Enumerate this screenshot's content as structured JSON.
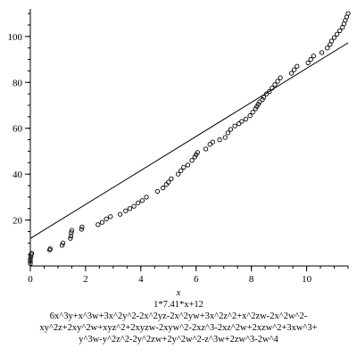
{
  "chart_data": {
    "type": "scatter",
    "xlabel": "x",
    "ylabel": "",
    "xlim": [
      0,
      11.5
    ],
    "ylim": [
      0,
      112
    ],
    "x_ticks": [
      0,
      2,
      4,
      6,
      8,
      10
    ],
    "y_ticks": [
      20,
      40,
      60,
      80,
      100
    ],
    "grid": false,
    "line": {
      "label": "1*7.41*x+12",
      "slope": 7.41,
      "intercept": 12
    },
    "points": [
      [
        0.0,
        1
      ],
      [
        0.0,
        2
      ],
      [
        0.0,
        3
      ],
      [
        0.02,
        4
      ],
      [
        0.03,
        5
      ],
      [
        0.05,
        5.5
      ],
      [
        0.7,
        7
      ],
      [
        0.72,
        7.5
      ],
      [
        1.15,
        9
      ],
      [
        1.18,
        10
      ],
      [
        1.45,
        12
      ],
      [
        1.47,
        13
      ],
      [
        1.48,
        14.5
      ],
      [
        1.5,
        15.5
      ],
      [
        1.85,
        16
      ],
      [
        1.87,
        17
      ],
      [
        2.45,
        18
      ],
      [
        2.6,
        19
      ],
      [
        2.75,
        20.5
      ],
      [
        2.9,
        21.5
      ],
      [
        3.25,
        22.5
      ],
      [
        3.45,
        24
      ],
      [
        3.6,
        25
      ],
      [
        3.75,
        26
      ],
      [
        3.9,
        27.5
      ],
      [
        4.05,
        28.5
      ],
      [
        4.2,
        30
      ],
      [
        4.6,
        32.5
      ],
      [
        4.8,
        34
      ],
      [
        4.92,
        35.5
      ],
      [
        5.0,
        36.5
      ],
      [
        5.1,
        38
      ],
      [
        5.35,
        40
      ],
      [
        5.45,
        41.5
      ],
      [
        5.55,
        43
      ],
      [
        5.7,
        44
      ],
      [
        5.85,
        46
      ],
      [
        5.95,
        47.5
      ],
      [
        6.0,
        48.5
      ],
      [
        6.05,
        49.5
      ],
      [
        6.35,
        51
      ],
      [
        6.5,
        53
      ],
      [
        6.6,
        54
      ],
      [
        6.85,
        55
      ],
      [
        7.05,
        56
      ],
      [
        7.15,
        58
      ],
      [
        7.25,
        59.5
      ],
      [
        7.4,
        61
      ],
      [
        7.55,
        62
      ],
      [
        7.65,
        63
      ],
      [
        7.8,
        64
      ],
      [
        7.95,
        65.5
      ],
      [
        8.05,
        67
      ],
      [
        8.15,
        68.5
      ],
      [
        8.2,
        69.5
      ],
      [
        8.25,
        70.5
      ],
      [
        8.3,
        71.5
      ],
      [
        8.4,
        72.5
      ],
      [
        8.45,
        73.5
      ],
      [
        8.55,
        75
      ],
      [
        8.65,
        76
      ],
      [
        8.75,
        77.5
      ],
      [
        8.85,
        79
      ],
      [
        8.95,
        80.5
      ],
      [
        9.05,
        82
      ],
      [
        9.45,
        84
      ],
      [
        9.55,
        85.5
      ],
      [
        9.65,
        87
      ],
      [
        10.05,
        88.5
      ],
      [
        10.15,
        90
      ],
      [
        10.25,
        91.5
      ],
      [
        10.55,
        93
      ],
      [
        10.75,
        95
      ],
      [
        10.85,
        96.5
      ],
      [
        10.9,
        98
      ],
      [
        11.0,
        99.5
      ],
      [
        11.1,
        101
      ],
      [
        11.2,
        102.5
      ],
      [
        11.3,
        104
      ],
      [
        11.35,
        105.5
      ],
      [
        11.4,
        107
      ],
      [
        11.45,
        108.5
      ],
      [
        11.5,
        110
      ]
    ]
  },
  "caption": {
    "formula_lines": [
      "6x^3y+x^3w+3x^2y^2-2x^2yz-2x^2yw+3x^2z^2+x^2zw-2x^2w^2-",
      "xy^2z+2xy^2w+xyz^2+2xyzw-2xyw^2-2xz^3-2xz^2w+2xzw^2+3xw^3+",
      "y^3w-y^2z^2-2y^2zw+2y^2w^2-z^3w+2zw^3-2w^4"
    ]
  }
}
